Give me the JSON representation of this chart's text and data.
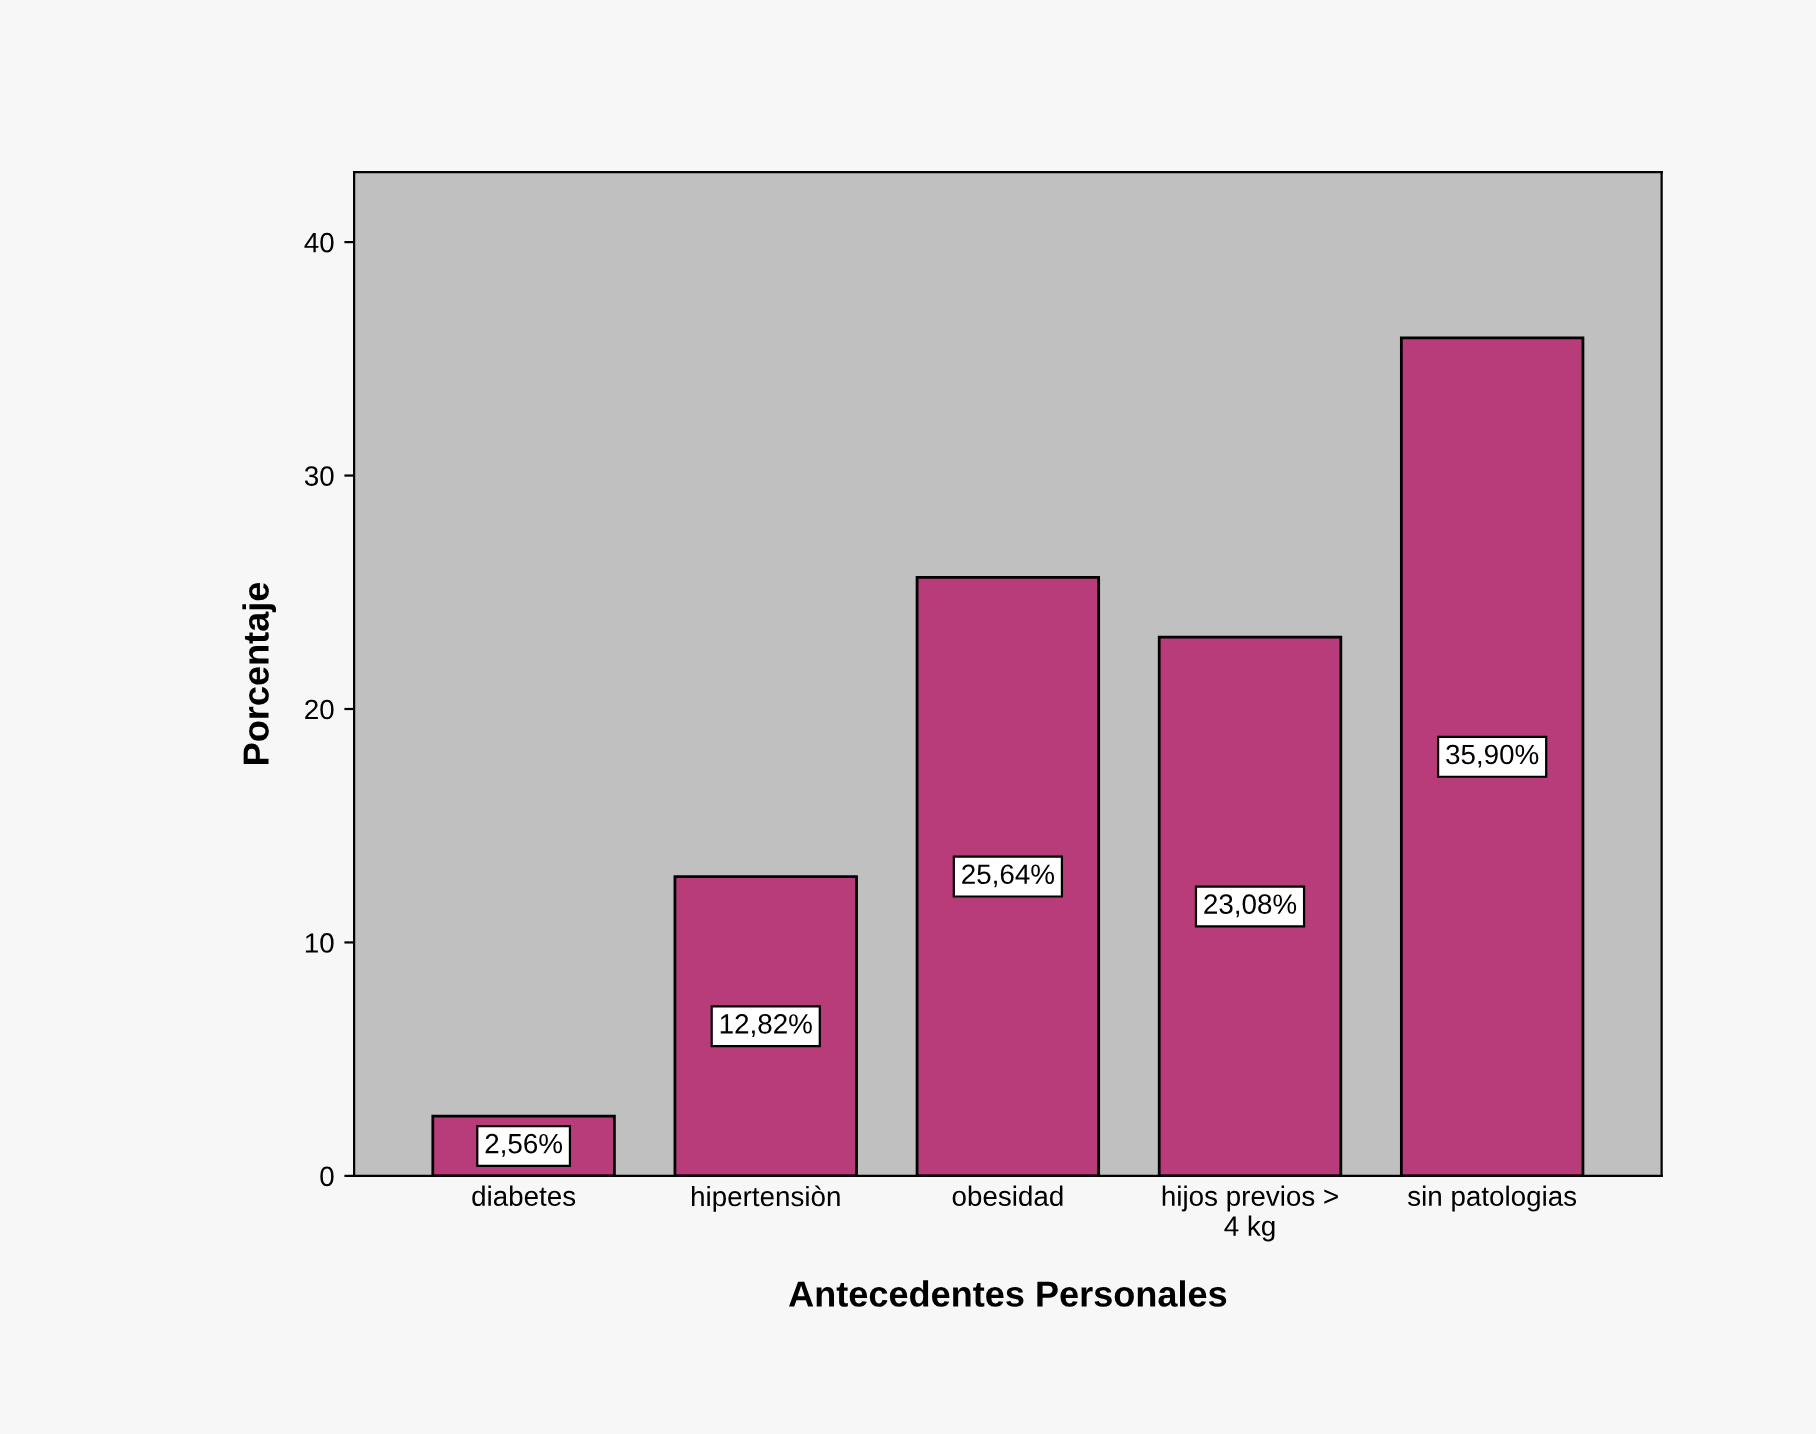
{
  "chart_data": {
    "type": "bar",
    "xlabel": "Antecedentes Personales",
    "ylabel": "Porcentaje",
    "categories": [
      "diabetes",
      "hipertensiòn",
      "obesidad",
      "hijos previos >\n4 kg",
      "sin patologias"
    ],
    "values": [
      2.56,
      12.82,
      25.64,
      23.08,
      35.9
    ],
    "value_labels": [
      "2,56%",
      "12,82%",
      "25,64%",
      "23,08%",
      "35,90%"
    ],
    "color": "#b83c7a",
    "ylim": [
      0,
      43
    ],
    "yticks": [
      0,
      10,
      20,
      30,
      40
    ],
    "grid": false
  }
}
